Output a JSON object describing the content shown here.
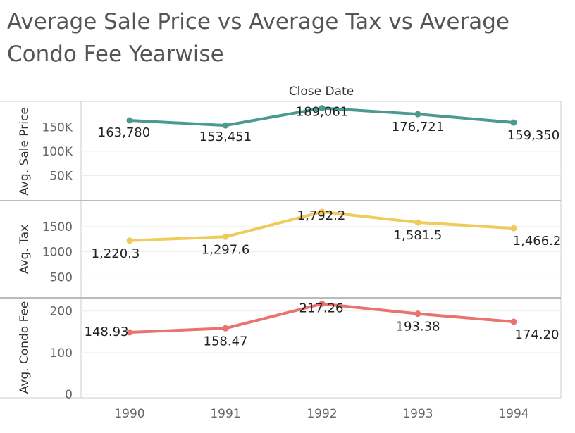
{
  "title": "Average Sale Price vs Average Tax vs Average Condo Fee Yearwise",
  "chart_data": {
    "type": "line",
    "title": "Average Sale Price vs Average Tax vs Average Condo Fee Yearwise",
    "column_header": "Close Date",
    "categories": [
      "1990",
      "1991",
      "1992",
      "1993",
      "1994"
    ],
    "grid": true,
    "panels": [
      {
        "ylabel": "Avg. Sale Price",
        "color": "#4a9a90",
        "ylim": [
          0,
          200000
        ],
        "ticks": [
          50000,
          100000,
          150000
        ],
        "tick_labels": [
          "50K",
          "100K",
          "150K"
        ],
        "values": [
          163780,
          153451,
          189061,
          176721,
          159350
        ],
        "value_labels": [
          "163,780",
          "153,451",
          "189,061",
          "176,721",
          "159,350"
        ]
      },
      {
        "ylabel": "Avg. Tax",
        "color": "#efcc5a",
        "ylim": [
          100,
          2000
        ],
        "ticks": [
          500,
          1000,
          1500
        ],
        "tick_labels": [
          "500",
          "1000",
          "1500"
        ],
        "values": [
          1220.3,
          1297.6,
          1792.2,
          1581.5,
          1466.2
        ],
        "value_labels": [
          "1,220.3",
          "1,297.6",
          "1,792.2",
          "1,581.5",
          "1,466.2"
        ]
      },
      {
        "ylabel": "Avg. Condo Fee",
        "color": "#e8736f",
        "ylim": [
          -5,
          230
        ],
        "ticks": [
          0,
          100,
          200
        ],
        "tick_labels": [
          "0",
          "100",
          "200"
        ],
        "values": [
          148.93,
          158.47,
          217.26,
          193.38,
          174.2
        ],
        "value_labels": [
          "148.93",
          "158.47",
          "217.26",
          "193.38",
          "174.20"
        ]
      }
    ]
  }
}
